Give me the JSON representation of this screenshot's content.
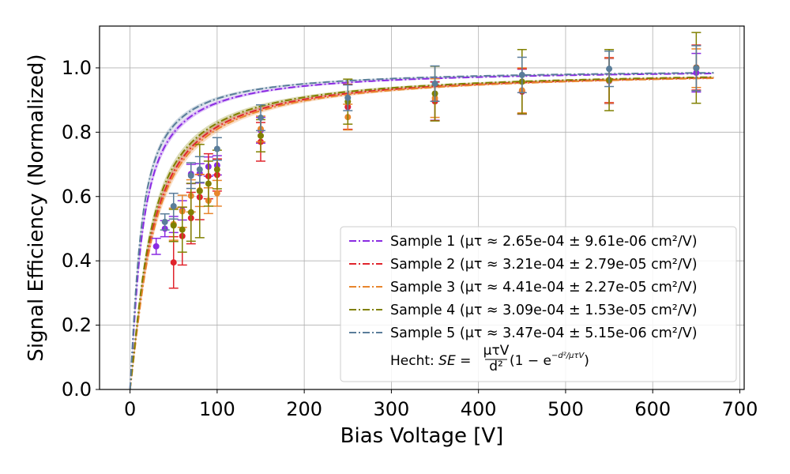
{
  "chart_data": {
    "type": "scatter",
    "title": "",
    "xlabel": "Bias Voltage [V]",
    "ylabel": "Signal Efficiency (Normalized)",
    "xlim": [
      -35,
      705
    ],
    "ylim": [
      0,
      1.13
    ],
    "xticks": [
      0,
      100,
      200,
      300,
      400,
      500,
      600,
      700
    ],
    "yticks": [
      0.0,
      0.2,
      0.4,
      0.6,
      0.8,
      1.0
    ],
    "xtick_labels": [
      "0",
      "100",
      "200",
      "300",
      "400",
      "500",
      "600",
      "700"
    ],
    "ytick_labels": [
      "0.0",
      "0.2",
      "0.4",
      "0.6",
      "0.8",
      "1.0"
    ],
    "grid": true,
    "legend_position": "lower-right",
    "fit_model": "Hecht",
    "fit_range": [
      0,
      670
    ],
    "formula_prefix": "Hecht: ",
    "formula_se": "SE",
    "formula_eq": " = ",
    "formula_num": "μτV",
    "formula_den": "d²",
    "formula_paren_open": "(1 − e",
    "formula_exp": "−d²/μτV",
    "formula_paren_close": ")",
    "series": [
      {
        "name": "Sample 1",
        "label": "Sample 1 (μτ ≈ 2.65e-04 ± 9.61e-06 cm²/V)",
        "color": "#8a2be2",
        "k": 23.5,
        "x": [
          30,
          40,
          50,
          60,
          70,
          80,
          90,
          100,
          150,
          250,
          350,
          450,
          550,
          650
        ],
        "y": [
          0.445,
          0.5,
          0.513,
          0.557,
          0.67,
          0.672,
          0.693,
          0.697,
          0.806,
          0.878,
          0.897,
          0.926,
          0.959,
          0.985
        ],
        "err": [
          0.025,
          0.025,
          0.025,
          0.03,
          0.03,
          0.03,
          0.03,
          0.03,
          0.04,
          0.07,
          0.06,
          0.07,
          0.07,
          0.06
        ]
      },
      {
        "name": "Sample 2",
        "label": "Sample 2 (μτ ≈ 3.21e-04 ± 2.79e-05 cm²/V)",
        "color": "#e0242c",
        "k": 42.0,
        "x": [
          50,
          60,
          70,
          80,
          90,
          100,
          150,
          250,
          350,
          450,
          550,
          650
        ],
        "y": [
          0.395,
          0.477,
          0.533,
          0.598,
          0.663,
          0.667,
          0.77,
          0.879,
          0.896,
          0.927,
          0.962,
          1.001
        ],
        "err": [
          0.08,
          0.09,
          0.08,
          0.07,
          0.07,
          0.05,
          0.06,
          0.07,
          0.06,
          0.07,
          0.07,
          0.07
        ]
      },
      {
        "name": "Sample 3",
        "label": "Sample 3 (μτ ≈ 4.41e-04 ± 2.27e-05 cm²/V)",
        "color": "#e8852d",
        "k": 44.0,
        "x": [
          50,
          60,
          70,
          80,
          90,
          100,
          150,
          250,
          350,
          450,
          550,
          650
        ],
        "y": [
          0.514,
          0.554,
          0.602,
          0.619,
          0.587,
          0.61,
          0.81,
          0.847,
          0.906,
          0.93,
          0.96,
          0.999
        ],
        "err": [
          0.05,
          0.05,
          0.05,
          0.05,
          0.04,
          0.04,
          0.04,
          0.04,
          0.06,
          0.07,
          0.07,
          0.06
        ]
      },
      {
        "name": "Sample 4",
        "label": "Sample 4 (μτ ≈ 3.09e-04 ± 1.53e-05 cm²/V)",
        "color": "#808000",
        "k": 39.0,
        "x": [
          50,
          60,
          70,
          80,
          90,
          100,
          150,
          250,
          350,
          450,
          550,
          650
        ],
        "y": [
          0.51,
          0.497,
          0.551,
          0.617,
          0.64,
          0.684,
          0.789,
          0.895,
          0.92,
          0.957,
          0.962,
          1.0
        ],
        "err": [
          0.05,
          0.07,
          0.09,
          0.145,
          0.07,
          0.06,
          0.05,
          0.07,
          0.085,
          0.1,
          0.095,
          0.11
        ]
      },
      {
        "name": "Sample 5",
        "label": "Sample 5 (μτ ≈ 3.47e-04 ± 5.15e-06 cm²/V)",
        "color": "#5a7d9a",
        "k": 20.5,
        "x": [
          40,
          50,
          70,
          80,
          100,
          150,
          250,
          350,
          450,
          550,
          650
        ],
        "y": [
          0.521,
          0.57,
          0.665,
          0.684,
          0.748,
          0.845,
          0.907,
          0.951,
          0.978,
          0.997,
          0.999
        ],
        "err": [
          0.025,
          0.04,
          0.04,
          0.04,
          0.035,
          0.04,
          0.04,
          0.055,
          0.055,
          0.055,
          0.07
        ]
      }
    ]
  }
}
